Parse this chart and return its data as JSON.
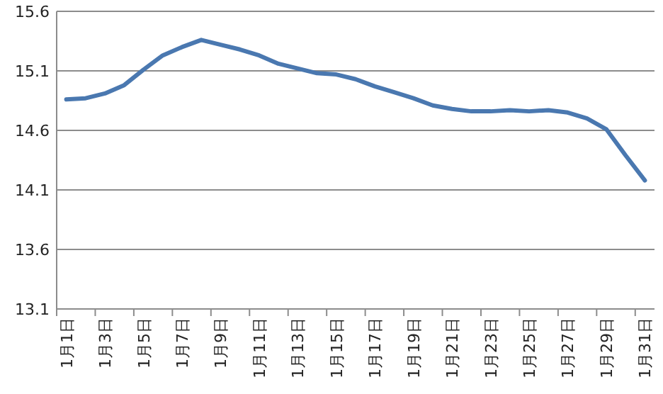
{
  "chart_data": {
    "type": "line",
    "categories": [
      "1月1日",
      null,
      "1月3日",
      null,
      "1月5日",
      null,
      "1月7日",
      null,
      "1月9日",
      null,
      "1月11日",
      null,
      "1月13日",
      null,
      "1月15日",
      null,
      "1月17日",
      null,
      "1月19日",
      null,
      "1月21日",
      null,
      "1月23日",
      null,
      "1月25日",
      null,
      "1月27日",
      null,
      "1月29日",
      null,
      "1月31日"
    ],
    "series": [
      {
        "color": "#4a78b0",
        "values": [
          14.86,
          14.87,
          14.91,
          14.98,
          15.11,
          15.23,
          15.3,
          15.36,
          15.32,
          15.28,
          15.23,
          15.16,
          15.12,
          15.08,
          15.07,
          15.03,
          14.97,
          14.92,
          14.87,
          14.81,
          14.78,
          14.76,
          14.76,
          14.77,
          14.76,
          14.77,
          14.75,
          14.7,
          14.61,
          14.39,
          14.18
        ]
      }
    ],
    "ylim": [
      13.1,
      15.6
    ],
    "yticks": [
      13.1,
      13.6,
      14.1,
      14.6,
      15.1,
      15.6
    ],
    "grid": "y",
    "marker": "none",
    "line_style": "solid"
  }
}
